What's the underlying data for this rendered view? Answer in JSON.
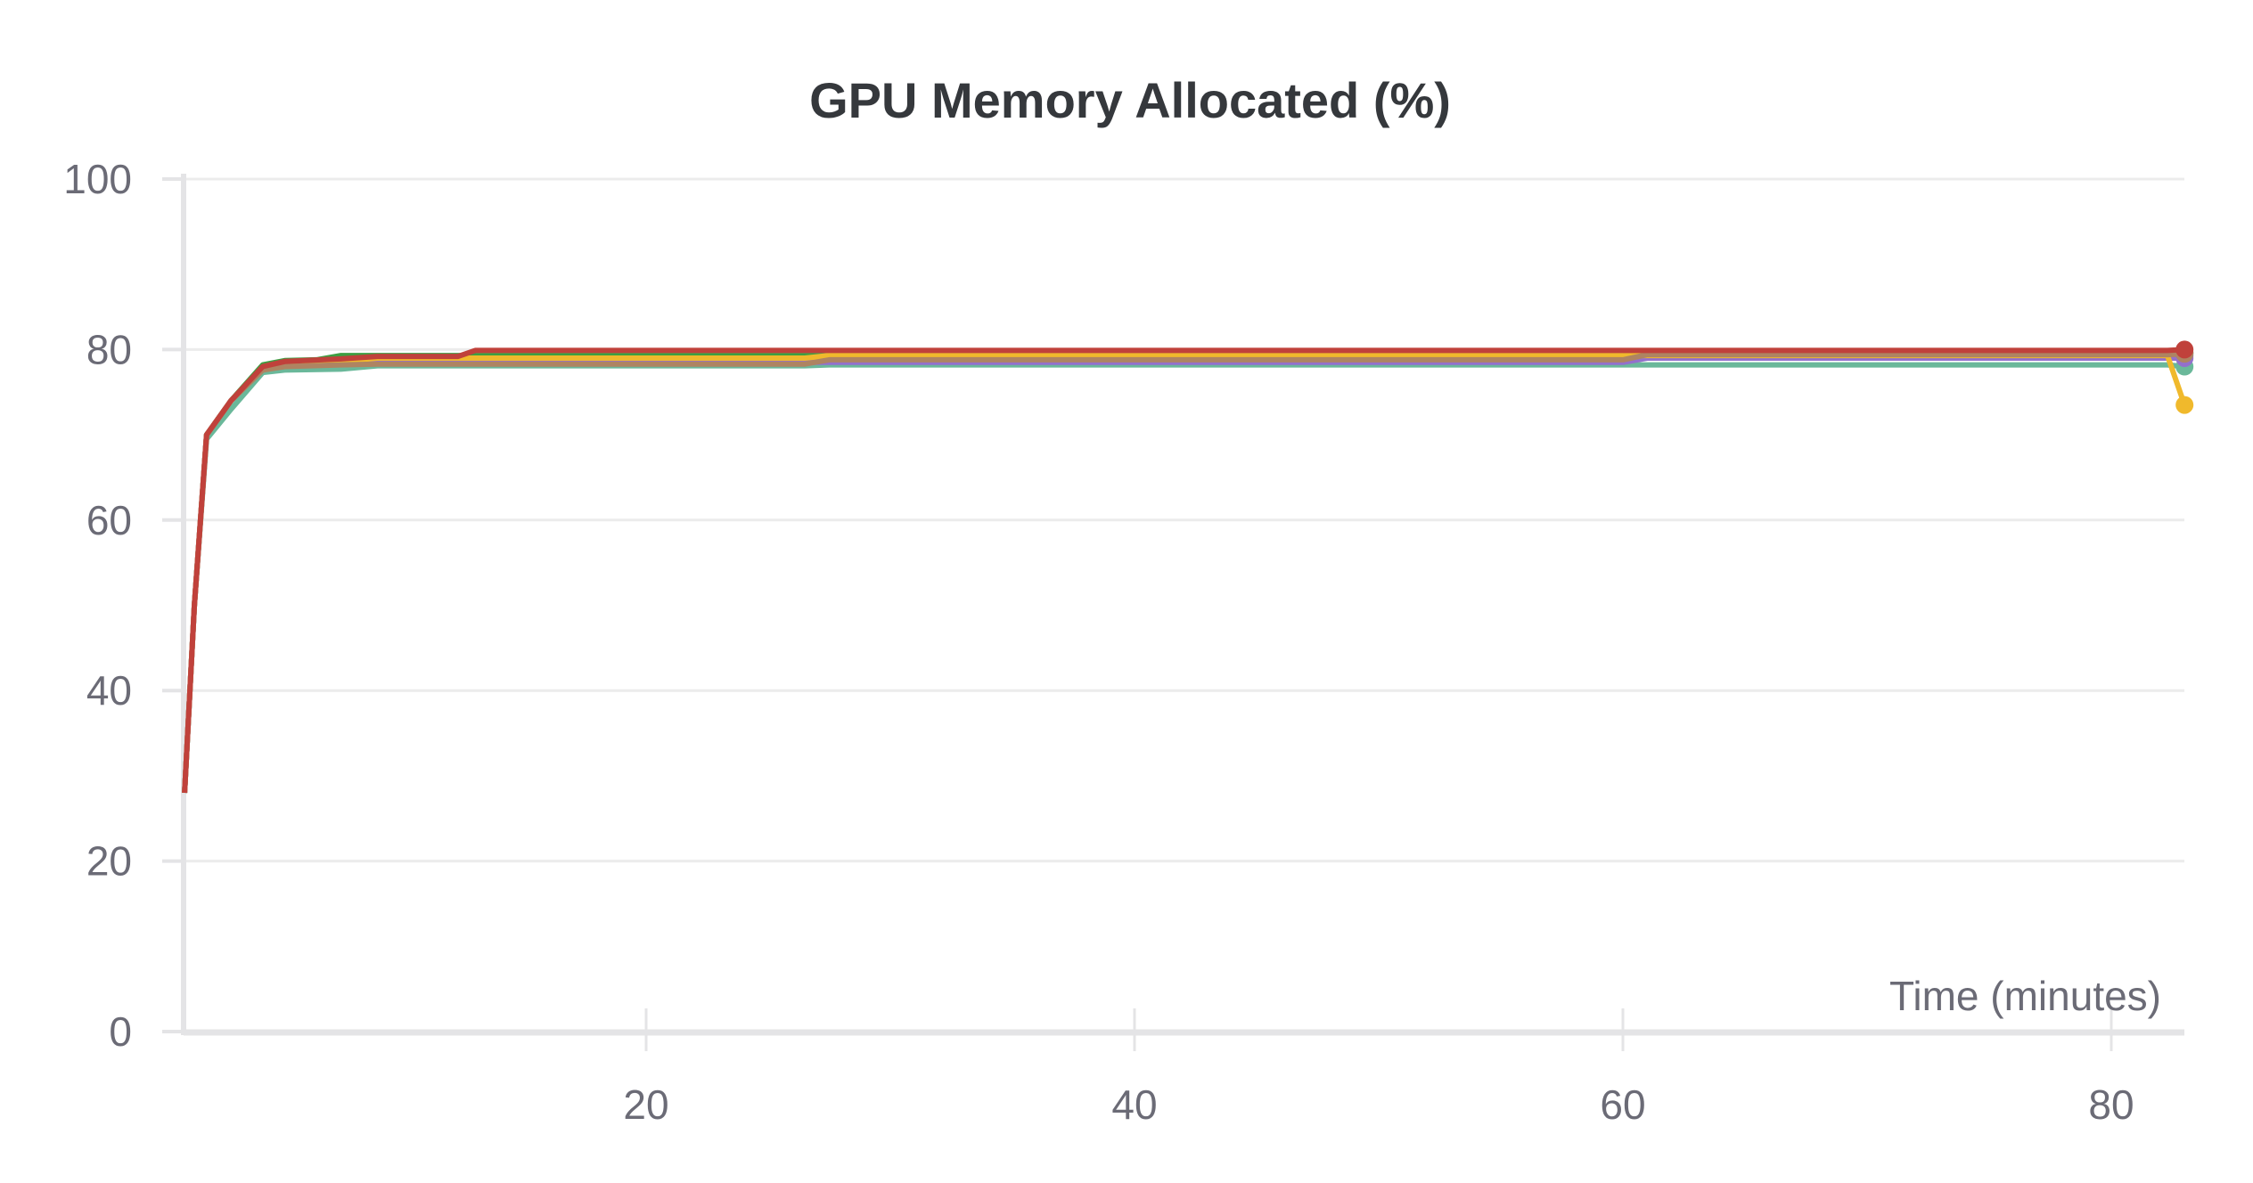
{
  "chart_data": {
    "type": "line",
    "title": "GPU Memory Allocated (%)",
    "xlabel": "Time (minutes)",
    "ylabel": "",
    "xlim": [
      1.1,
      83
    ],
    "ylim": [
      0,
      100
    ],
    "x_ticks": [
      20,
      40,
      60,
      80
    ],
    "y_ticks": [
      0,
      20,
      40,
      60,
      80,
      100
    ],
    "grid": true,
    "series": [
      {
        "color": "#6ab89a",
        "points": [
          [
            1.1,
            28
          ],
          [
            1.5,
            50
          ],
          [
            2.0,
            69.5
          ],
          [
            3.0,
            73
          ],
          [
            4.3,
            77.3
          ],
          [
            5.2,
            77.6
          ],
          [
            7.5,
            77.7
          ],
          [
            9,
            78.1
          ],
          [
            26.5,
            78.1
          ],
          [
            27.5,
            78.2
          ],
          [
            82.3,
            78.2
          ],
          [
            83,
            78
          ]
        ]
      },
      {
        "color": "#5387dd",
        "points": [
          [
            1.1,
            28
          ],
          [
            1.5,
            50
          ],
          [
            2.0,
            70
          ],
          [
            3.0,
            74
          ],
          [
            4.3,
            78
          ],
          [
            5.2,
            78.6
          ],
          [
            7.5,
            78.9
          ],
          [
            9,
            79.2
          ],
          [
            82.3,
            79.2
          ],
          [
            83,
            79.3
          ]
        ]
      },
      {
        "color": "#3d9e42",
        "points": [
          [
            1.1,
            28
          ],
          [
            1.5,
            50
          ],
          [
            2.0,
            70
          ],
          [
            3.0,
            74
          ],
          [
            4.3,
            78.2
          ],
          [
            5.2,
            78.7
          ],
          [
            6.5,
            78.8
          ],
          [
            7.5,
            79.3
          ],
          [
            60,
            79.3
          ],
          [
            61,
            79.6
          ],
          [
            82.3,
            79.6
          ],
          [
            83,
            79.6
          ]
        ]
      },
      {
        "color": "#9370cc",
        "points": [
          [
            1.1,
            28
          ],
          [
            1.5,
            50
          ],
          [
            2.0,
            70
          ],
          [
            3.0,
            74
          ],
          [
            4.3,
            77.8
          ],
          [
            5.2,
            78.2
          ],
          [
            7.5,
            78.4
          ],
          [
            9,
            78.5
          ],
          [
            60,
            78.5
          ],
          [
            61,
            79
          ],
          [
            82.3,
            79
          ],
          [
            83,
            79
          ]
        ]
      },
      {
        "color": "#f0b92c",
        "points": [
          [
            1.1,
            28
          ],
          [
            1.5,
            50
          ],
          [
            2.0,
            70
          ],
          [
            3.0,
            74
          ],
          [
            4.3,
            77.9
          ],
          [
            5.2,
            78.3
          ],
          [
            7.5,
            78.6
          ],
          [
            9,
            79
          ],
          [
            26.5,
            79
          ],
          [
            27.5,
            79.3
          ],
          [
            82.3,
            79.3
          ],
          [
            83,
            73.5
          ]
        ]
      },
      {
        "color": "#ae8462",
        "points": [
          [
            1.1,
            28
          ],
          [
            1.5,
            50
          ],
          [
            2.0,
            70
          ],
          [
            3.0,
            74
          ],
          [
            4.3,
            77.6
          ],
          [
            5.2,
            78
          ],
          [
            7.5,
            78.2
          ],
          [
            9,
            78.3
          ],
          [
            26.5,
            78.3
          ],
          [
            27.5,
            78.8
          ],
          [
            60,
            78.8
          ],
          [
            61,
            79.4
          ],
          [
            82.3,
            79.4
          ],
          [
            83,
            79.5
          ]
        ]
      },
      {
        "color": "#c0413b",
        "points": [
          [
            1.1,
            28
          ],
          [
            1.5,
            50
          ],
          [
            2.0,
            70
          ],
          [
            3.0,
            74
          ],
          [
            4.3,
            78
          ],
          [
            5.2,
            78.6
          ],
          [
            7.5,
            78.9
          ],
          [
            9,
            79.2
          ],
          [
            12.3,
            79.2
          ],
          [
            13,
            79.9
          ],
          [
            82.3,
            79.9
          ],
          [
            83,
            80
          ]
        ]
      }
    ]
  }
}
